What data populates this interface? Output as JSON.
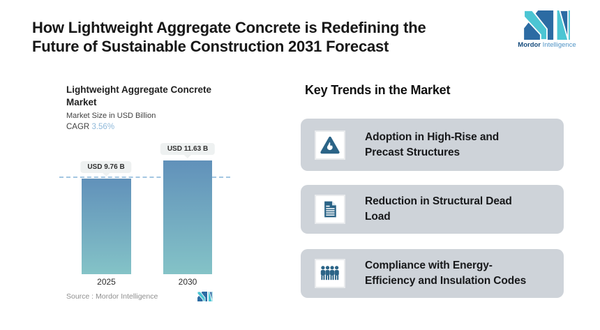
{
  "page": {
    "title": "How Lightweight Aggregate Concrete is Redefining the\nFuture of Sustainable Construction 2031 Forecast"
  },
  "brand": {
    "name_bold": "Mordor",
    "name_light": "Intelligence",
    "color_teal": "#4cc5d3",
    "color_blue": "#2c6ba3"
  },
  "chart_data": {
    "type": "bar",
    "title": "Lightweight Aggregate Concrete\nMarket",
    "subtitle": "Market Size in USD Billion",
    "cagr_label": "CAGR",
    "cagr_value": "3.56%",
    "categories": [
      "2025",
      "2030"
    ],
    "values": [
      9.76,
      11.63
    ],
    "value_labels": [
      "USD 9.76 B",
      "USD 11.63 B"
    ],
    "unit": "USD Billion",
    "reference_line": 9.76,
    "bar_gradient_top": "#6191ba",
    "bar_gradient_bottom": "#84c3c7",
    "source_label": "Source :  Mordor Intelligence",
    "legend": "none",
    "grid": "off"
  },
  "trends": {
    "heading": "Key Trends in the Market",
    "icon_color": "#2b6487",
    "items": [
      {
        "icon": "flame-triangle-icon",
        "label": "Adoption in High-Rise and\nPrecast Structures"
      },
      {
        "icon": "document-icon",
        "label": "Reduction in Structural Dead\nLoad"
      },
      {
        "icon": "people-group-icon",
        "label": "Compliance with Energy-\nEfficiency and Insulation Codes"
      }
    ]
  }
}
